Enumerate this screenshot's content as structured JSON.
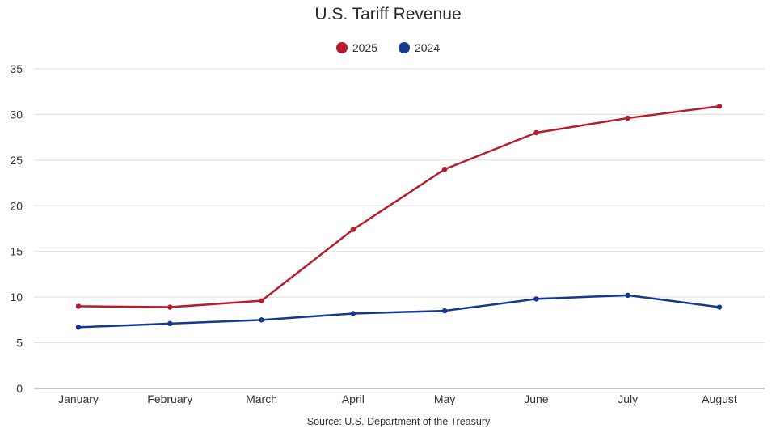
{
  "chart_data": {
    "type": "line",
    "title": "U.S. Tariff Revenue",
    "categories": [
      "January",
      "February",
      "March",
      "April",
      "May",
      "June",
      "July",
      "August"
    ],
    "series": [
      {
        "name": "2025",
        "color": "#b71c2c",
        "values": [
          9.0,
          8.9,
          9.6,
          17.4,
          24.0,
          28.0,
          29.6,
          30.9
        ]
      },
      {
        "name": "2024",
        "color": "#13388f",
        "values": [
          6.7,
          7.1,
          7.5,
          8.2,
          8.5,
          9.8,
          10.2,
          8.9
        ]
      }
    ],
    "ylim": [
      0,
      35
    ],
    "yticks": [
      "0",
      "5",
      "10",
      "15",
      "20",
      "25",
      "30",
      "35"
    ],
    "xlabel": "",
    "ylabel": "",
    "grid": true,
    "legend": "top-center",
    "source": "Source: U.S. Department of the Treasury"
  }
}
